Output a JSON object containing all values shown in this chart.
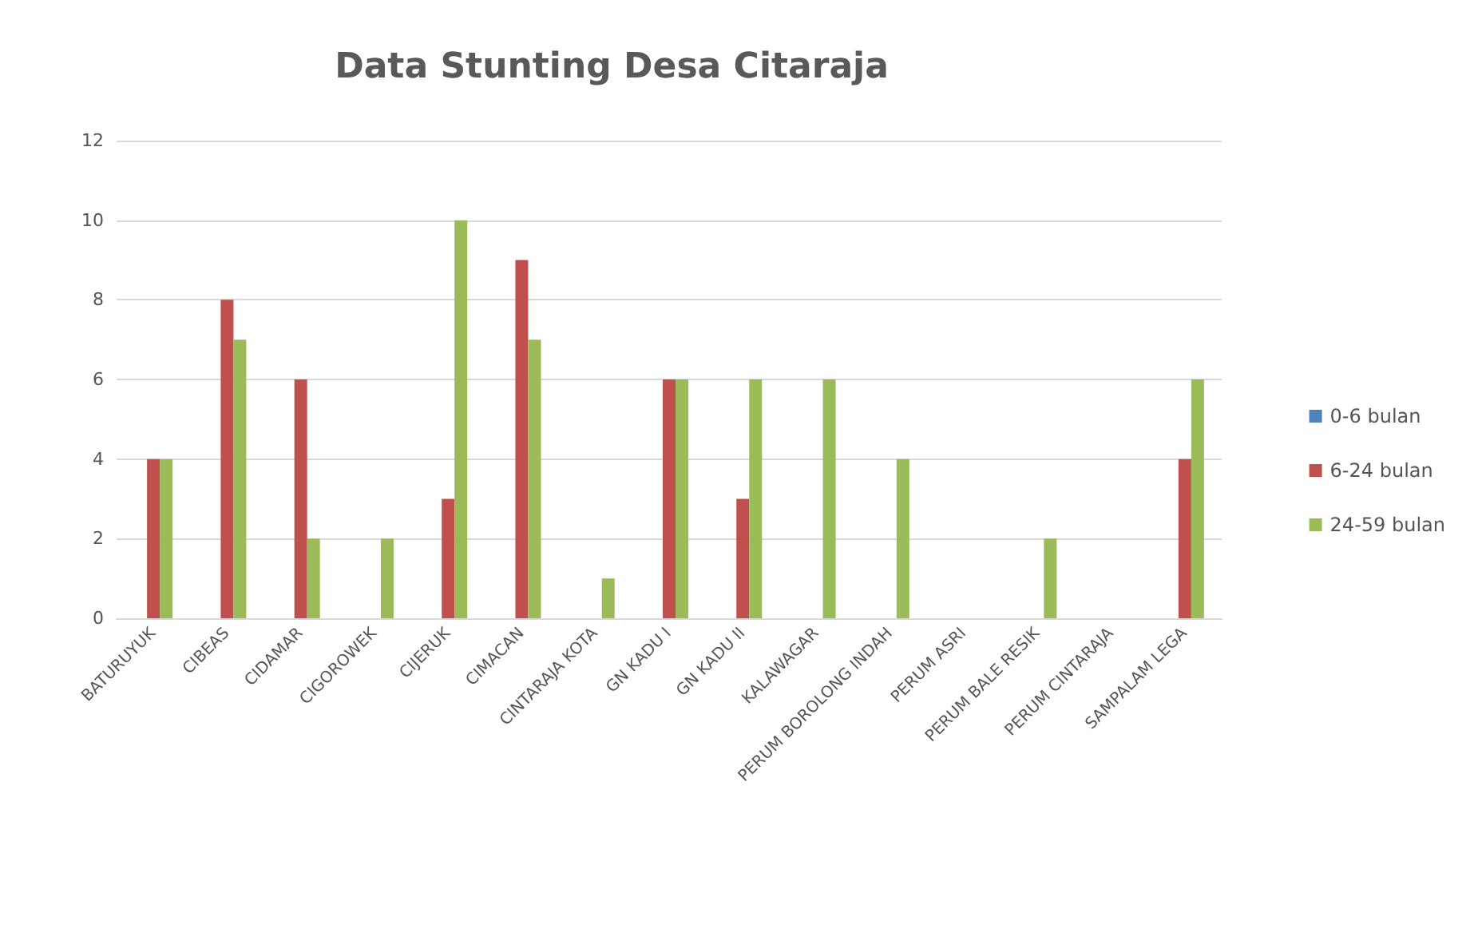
{
  "chart_data": {
    "type": "bar",
    "title": "Data Stunting Desa Citaraja",
    "categories": [
      "BATURUYUK",
      "CIBEAS",
      "CIDAMAR",
      "CIGOROWEK",
      "CIJERUK",
      "CIMACAN",
      "CINTARAJA KOTA",
      "GN KADU I",
      "GN KADU II",
      "KALAWAGAR",
      "PERUM BOROLONG INDAH",
      "PERUM ASRI",
      "PERUM BALE RESIK",
      "PERUM CINTARAJA",
      "SAMPALAM LEGA"
    ],
    "series": [
      {
        "name": "0-6 bulan",
        "color": "#4f81bd",
        "values": [
          0,
          0,
          0,
          0,
          0,
          0,
          0,
          0,
          0,
          0,
          0,
          0,
          0,
          0,
          0
        ]
      },
      {
        "name": "6-24 bulan",
        "color": "#c0504d",
        "values": [
          4,
          8,
          6,
          0,
          3,
          9,
          0,
          6,
          3,
          0,
          0,
          0,
          0,
          0,
          4
        ]
      },
      {
        "name": "24-59 bulan",
        "color": "#9bbb59",
        "values": [
          4,
          7,
          2,
          2,
          10,
          7,
          1,
          6,
          6,
          6,
          4,
          0,
          2,
          0,
          6
        ]
      }
    ],
    "ylim": [
      0,
      12
    ],
    "yticks": [
      0,
      2,
      4,
      6,
      8,
      10,
      12
    ],
    "grid": "y",
    "legend": "right"
  }
}
